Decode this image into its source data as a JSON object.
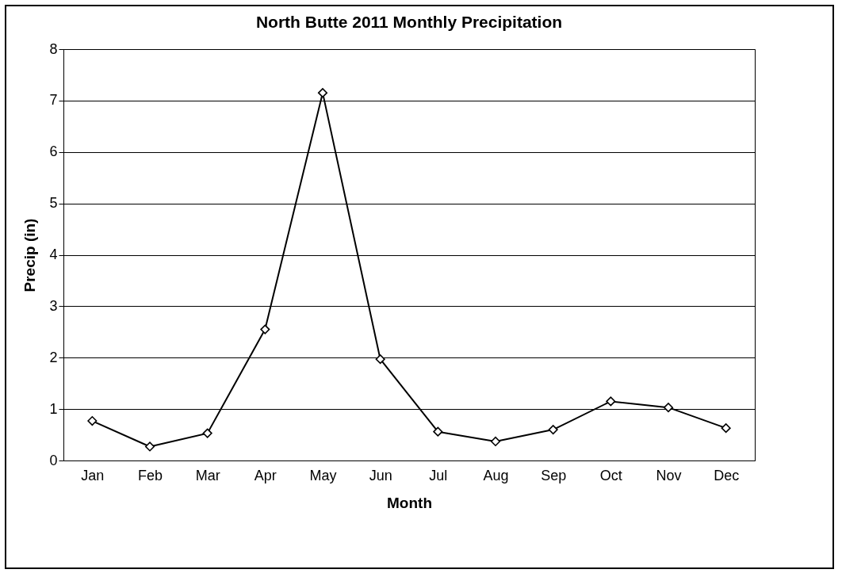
{
  "chart_data": {
    "type": "line",
    "title": "North Butte 2011 Monthly Precipitation",
    "xlabel": "Month",
    "ylabel": "Precip (in)",
    "categories": [
      "Jan",
      "Feb",
      "Mar",
      "Apr",
      "May",
      "Jun",
      "Jul",
      "Aug",
      "Sep",
      "Oct",
      "Nov",
      "Dec"
    ],
    "series": [
      {
        "color": "#000000",
        "values": [
          0.77,
          0.27,
          0.53,
          2.55,
          7.15,
          1.97,
          0.56,
          0.37,
          0.6,
          1.15,
          1.03,
          0.63
        ]
      }
    ],
    "ylim": [
      0,
      8
    ],
    "yticks": [
      0,
      1,
      2,
      3,
      4,
      5,
      6,
      7,
      8
    ],
    "grid": "y",
    "marker": "diamond",
    "line_style": "solid"
  }
}
